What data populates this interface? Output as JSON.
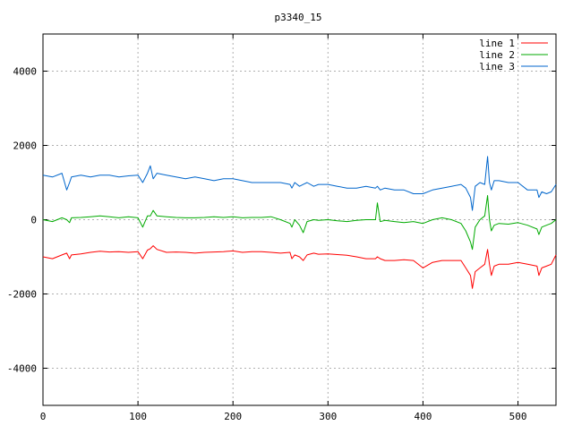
{
  "chart_data": {
    "type": "line",
    "title": "p3340_15",
    "xlabel": "",
    "ylabel": "",
    "xlim": [
      0,
      540
    ],
    "ylim": [
      -5000,
      5000
    ],
    "x_ticks": [
      0,
      100,
      200,
      300,
      400,
      500
    ],
    "y_ticks": [
      -4000,
      -2000,
      0,
      2000,
      4000
    ],
    "grid": true,
    "legend_position": "top-right",
    "x": [
      0,
      10,
      20,
      25,
      28,
      30,
      40,
      50,
      60,
      70,
      80,
      90,
      100,
      105,
      110,
      113,
      116,
      120,
      130,
      140,
      150,
      160,
      170,
      180,
      190,
      200,
      210,
      220,
      230,
      240,
      250,
      260,
      262,
      265,
      270,
      274,
      278,
      285,
      290,
      300,
      310,
      320,
      330,
      340,
      350,
      352,
      355,
      360,
      370,
      380,
      390,
      400,
      410,
      420,
      430,
      440,
      445,
      450,
      452,
      455,
      460,
      465,
      468,
      470,
      472,
      475,
      480,
      490,
      500,
      510,
      520,
      522,
      525,
      530,
      535,
      540
    ],
    "series": [
      {
        "name": "line 1",
        "color": "#ff0000",
        "values": [
          -1000,
          -1050,
          -950,
          -900,
          -1050,
          -950,
          -920,
          -880,
          -850,
          -870,
          -860,
          -880,
          -860,
          -1050,
          -820,
          -780,
          -700,
          -800,
          -880,
          -870,
          -880,
          -900,
          -880,
          -870,
          -860,
          -840,
          -880,
          -860,
          -860,
          -880,
          -900,
          -880,
          -1050,
          -950,
          -1000,
          -1100,
          -950,
          -900,
          -930,
          -920,
          -940,
          -960,
          -1000,
          -1050,
          -1050,
          -1000,
          -1050,
          -1100,
          -1100,
          -1080,
          -1100,
          -1300,
          -1150,
          -1100,
          -1100,
          -1100,
          -1300,
          -1500,
          -1850,
          -1400,
          -1300,
          -1200,
          -800,
          -1200,
          -1500,
          -1250,
          -1200,
          -1200,
          -1150,
          -1200,
          -1250,
          -1500,
          -1300,
          -1250,
          -1200,
          -950
        ]
      },
      {
        "name": "line 2",
        "color": "#00aa00",
        "values": [
          0,
          -50,
          50,
          0,
          -80,
          50,
          60,
          80,
          100,
          80,
          50,
          80,
          50,
          -200,
          100,
          100,
          250,
          100,
          80,
          60,
          50,
          50,
          60,
          80,
          60,
          80,
          50,
          60,
          60,
          80,
          0,
          -100,
          -200,
          0,
          -150,
          -350,
          -50,
          0,
          -20,
          0,
          -30,
          -50,
          -20,
          0,
          0,
          450,
          -50,
          -20,
          -50,
          -80,
          -50,
          -100,
          0,
          50,
          0,
          -100,
          -300,
          -600,
          -800,
          -200,
          0,
          100,
          650,
          0,
          -300,
          -150,
          -100,
          -120,
          -80,
          -150,
          -250,
          -400,
          -200,
          -150,
          -100,
          0
        ]
      },
      {
        "name": "line 3",
        "color": "#0066cc",
        "values": [
          1200,
          1150,
          1250,
          800,
          1000,
          1150,
          1200,
          1150,
          1200,
          1200,
          1150,
          1180,
          1200,
          1000,
          1250,
          1450,
          1100,
          1250,
          1200,
          1150,
          1100,
          1150,
          1100,
          1050,
          1100,
          1100,
          1050,
          1000,
          1000,
          1000,
          1000,
          950,
          850,
          1000,
          900,
          950,
          1000,
          900,
          950,
          950,
          900,
          850,
          850,
          900,
          850,
          900,
          800,
          850,
          800,
          800,
          700,
          700,
          800,
          850,
          900,
          950,
          850,
          600,
          250,
          900,
          1000,
          950,
          1700,
          1000,
          800,
          1050,
          1050,
          1000,
          1000,
          800,
          800,
          600,
          750,
          700,
          750,
          950
        ]
      }
    ]
  }
}
